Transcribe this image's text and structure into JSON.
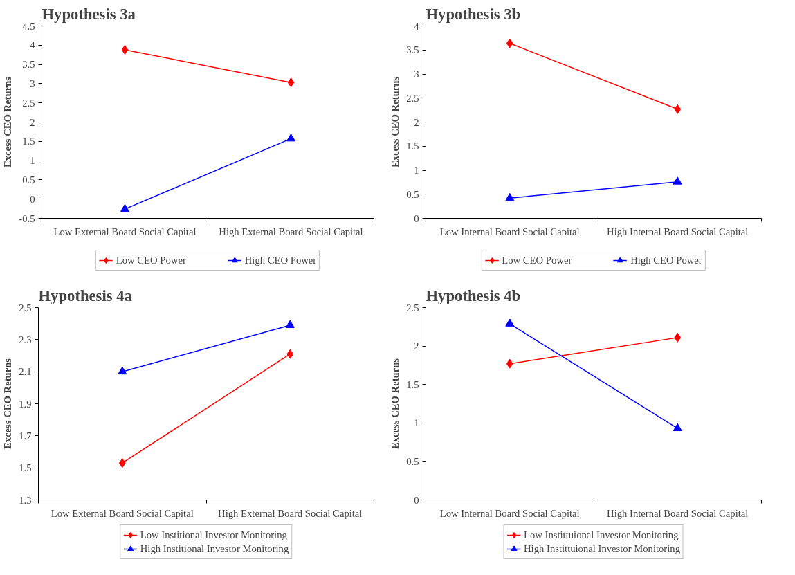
{
  "chart_data": [
    {
      "type": "line",
      "title": "Hypothesis 3a",
      "ylabel": "Excess CEO Returns",
      "categories": [
        "Low External Board Social Capital",
        "High External Board Social Capital"
      ],
      "ylim": [
        -0.5,
        4.5
      ],
      "yticks": [
        -0.5,
        0,
        0.5,
        1,
        1.5,
        2,
        2.5,
        3,
        3.5,
        4,
        4.5
      ],
      "grid": false,
      "legend": "bottom",
      "series": [
        {
          "name": "Low CEO Power",
          "color": "#ff0000",
          "marker": "diamond",
          "values": [
            3.88,
            3.03
          ]
        },
        {
          "name": "High CEO Power",
          "color": "#0000ff",
          "marker": "triangle",
          "values": [
            -0.26,
            1.57
          ]
        }
      ]
    },
    {
      "type": "line",
      "title": "Hypothesis 3b",
      "ylabel": "Excess CEO Returns",
      "categories": [
        "Low Internal Board Social Capital",
        "High Internal Board Social Capital"
      ],
      "ylim": [
        0,
        4
      ],
      "yticks": [
        0,
        0.5,
        1,
        1.5,
        2,
        2.5,
        3,
        3.5,
        4
      ],
      "grid": false,
      "legend": "bottom",
      "series": [
        {
          "name": "Low CEO Power",
          "color": "#ff0000",
          "marker": "diamond",
          "values": [
            3.64,
            2.27
          ]
        },
        {
          "name": "High CEO Power",
          "color": "#0000ff",
          "marker": "triangle",
          "values": [
            0.42,
            0.76
          ]
        }
      ]
    },
    {
      "type": "line",
      "title": "Hypothesis 4a",
      "ylabel": "Excess CEO Returns",
      "categories": [
        "Low External Board Social Capital",
        "High External Board Social Capital"
      ],
      "ylim": [
        1.3,
        2.5
      ],
      "yticks": [
        1.3,
        1.5,
        1.7,
        1.9,
        2.1,
        2.3,
        2.5
      ],
      "grid": false,
      "legend": "bottom",
      "series": [
        {
          "name": "Low Institional Investor Monitoring",
          "color": "#ff0000",
          "marker": "diamond",
          "values": [
            1.53,
            2.21
          ]
        },
        {
          "name": "High Institional Investor Monitoring",
          "color": "#0000ff",
          "marker": "triangle",
          "values": [
            2.1,
            2.39
          ]
        }
      ]
    },
    {
      "type": "line",
      "title": "Hypothesis 4b",
      "ylabel": "Excess CEO Returns",
      "categories": [
        "Low Internal Board Social Capital",
        "High Internal Board Social Capital"
      ],
      "ylim": [
        0,
        2.5
      ],
      "yticks": [
        0,
        0.5,
        1,
        1.5,
        2,
        2.5
      ],
      "grid": false,
      "legend": "bottom",
      "series": [
        {
          "name": "Low Instittuional Investor Monitoring",
          "color": "#ff0000",
          "marker": "diamond",
          "values": [
            1.77,
            2.11
          ]
        },
        {
          "name": "High Instittuional Investor Monitoring",
          "color": "#0000ff",
          "marker": "triangle",
          "values": [
            2.29,
            0.93
          ]
        }
      ]
    }
  ]
}
